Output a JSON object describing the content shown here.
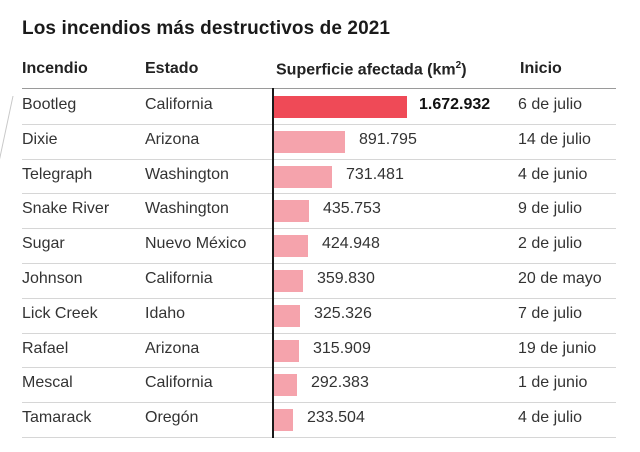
{
  "title": "Los incendios más destructivos de 2021",
  "headers": {
    "fire": "Incendio",
    "state": "Estado",
    "area_base": "Superficie afectada (km",
    "area_sup": "2",
    "area_close": ")",
    "start": "Inicio"
  },
  "colors": {
    "highlight": "#ef4a57",
    "bar": "#f5a3ac",
    "axis": "#1a1a1a"
  },
  "chart_data": {
    "type": "bar",
    "orientation": "horizontal",
    "title": "Los incendios más destructivos de 2021",
    "xlabel": "Superficie afectada (km²)",
    "categories": [
      "Bootleg",
      "Dixie",
      "Telegraph",
      "Snake River",
      "Sugar",
      "Johnson",
      "Lick Creek",
      "Rafael",
      "Mescal",
      "Tamarack"
    ],
    "values": [
      1672932,
      891795,
      731481,
      435753,
      424948,
      359830,
      325326,
      315909,
      292383,
      233504
    ],
    "value_labels": [
      "1.672.932",
      "891.795",
      "731.481",
      "435.753",
      "424.948",
      "359.830",
      "325.326",
      "315.909",
      "292.383",
      "233.504"
    ],
    "xlim": [
      0,
      1672932
    ],
    "highlighted": "Bootleg"
  },
  "rows": [
    {
      "fire": "Bootleg",
      "state": "California",
      "start": "6 de julio"
    },
    {
      "fire": "Dixie",
      "state": "Arizona",
      "start": "14 de julio"
    },
    {
      "fire": "Telegraph",
      "state": "Washington",
      "start": "4 de junio"
    },
    {
      "fire": "Snake River",
      "state": "Washington",
      "start": "9 de julio"
    },
    {
      "fire": "Sugar",
      "state": "Nuevo México",
      "start": "2 de julio"
    },
    {
      "fire": "Johnson",
      "state": "California",
      "start": "20 de mayo"
    },
    {
      "fire": "Lick Creek",
      "state": "Idaho",
      "start": "7 de julio"
    },
    {
      "fire": "Rafael",
      "state": "Arizona",
      "start": "19 de junio"
    },
    {
      "fire": "Mescal",
      "state": "California",
      "start": "1 de junio"
    },
    {
      "fire": "Tamarack",
      "state": "Oregón",
      "start": "4 de julio"
    }
  ]
}
